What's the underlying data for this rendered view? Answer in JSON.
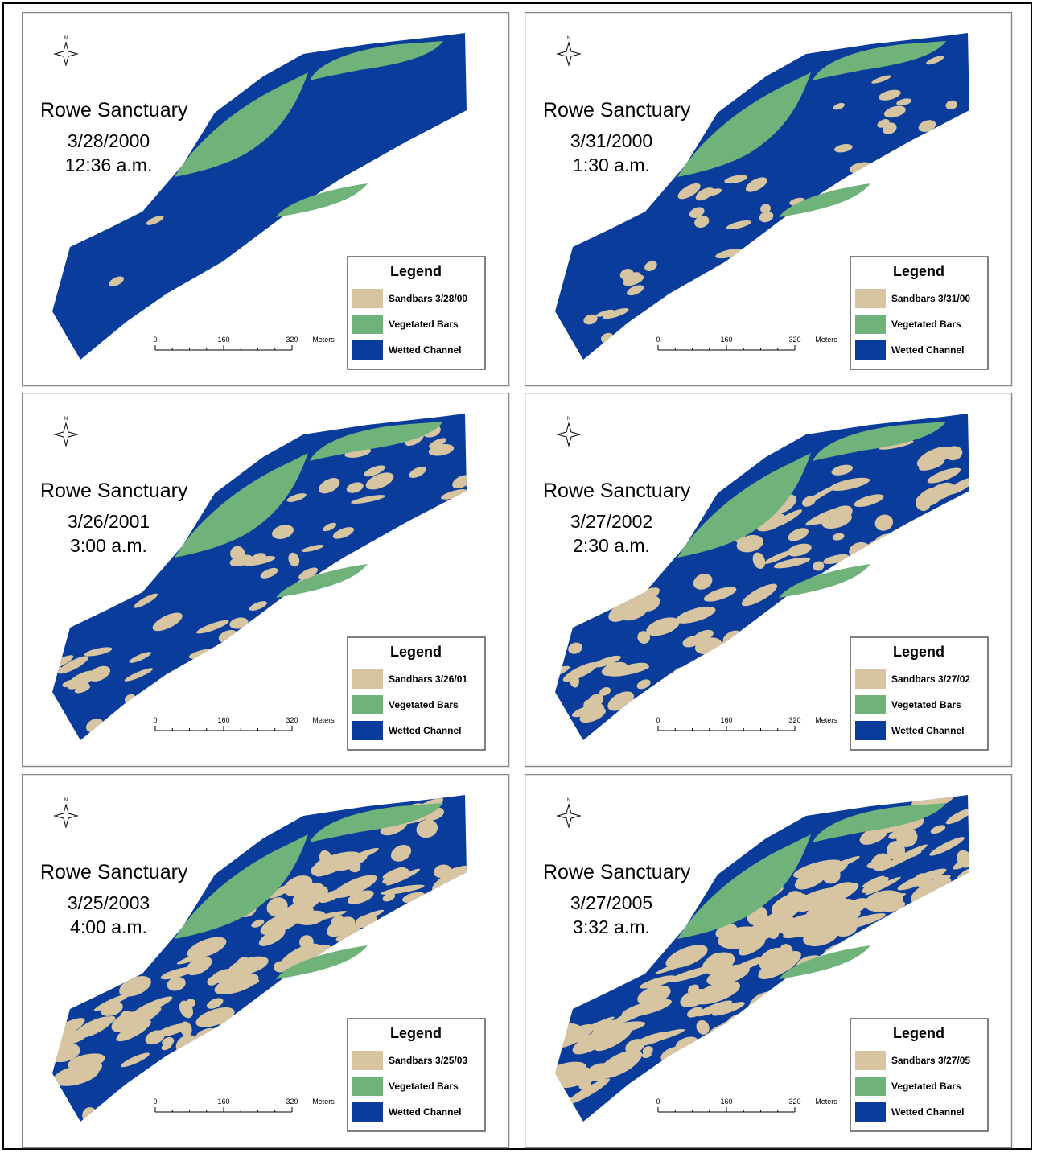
{
  "panels": [
    {
      "title": "Rowe Sanctuary",
      "date": "3/28/2000",
      "time": "12:36 a.m.",
      "north": "N",
      "legend": {
        "title": "Legend",
        "items": [
          "Sandbars 3/28/00",
          "Vegetated Bars",
          "Wetted Channel"
        ]
      },
      "scale": {
        "ticks": [
          0,
          160,
          320
        ],
        "unit": "Meters"
      }
    },
    {
      "title": "Rowe Sanctuary",
      "date": "3/31/2000",
      "time": "1:30 a.m.",
      "north": "N",
      "legend": {
        "title": "Legend",
        "items": [
          "Sandbars 3/31/00",
          "Vegetated Bars",
          "Wetted Channel"
        ]
      },
      "scale": {
        "ticks": [
          0,
          160,
          320
        ],
        "unit": "Meters"
      }
    },
    {
      "title": "Rowe Sanctuary",
      "date": "3/26/2001",
      "time": "3:00 a.m.",
      "north": "N",
      "legend": {
        "title": "Legend",
        "items": [
          "Sandbars 3/26/01",
          "Vegetated Bars",
          "Wetted Channel"
        ]
      },
      "scale": {
        "ticks": [
          0,
          160,
          320
        ],
        "unit": "Meters"
      }
    },
    {
      "title": "Rowe Sanctuary",
      "date": "3/27/2002",
      "time": "2:30 a.m.",
      "north": "N",
      "legend": {
        "title": "Legend",
        "items": [
          "Sandbars 3/27/02",
          "Vegetated Bars",
          "Wetted Channel"
        ]
      },
      "scale": {
        "ticks": [
          0,
          160,
          320
        ],
        "unit": "Meters"
      }
    },
    {
      "title": "Rowe Sanctuary",
      "date": "3/25/2003",
      "time": "4:00 a.m.",
      "north": "N",
      "legend": {
        "title": "Legend",
        "items": [
          "Sandbars 3/25/03",
          "Vegetated Bars",
          "Wetted Channel"
        ]
      },
      "scale": {
        "ticks": [
          0,
          160,
          320
        ],
        "unit": "Meters"
      }
    },
    {
      "title": "Rowe Sanctuary",
      "date": "3/27/2005",
      "time": "3:32 a.m.",
      "north": "N",
      "legend": {
        "title": "Legend",
        "items": [
          "Sandbars 3/27/05",
          "Vegetated Bars",
          "Wetted Channel"
        ]
      },
      "scale": {
        "ticks": [
          0,
          160,
          320
        ],
        "unit": "Meters"
      }
    }
  ]
}
